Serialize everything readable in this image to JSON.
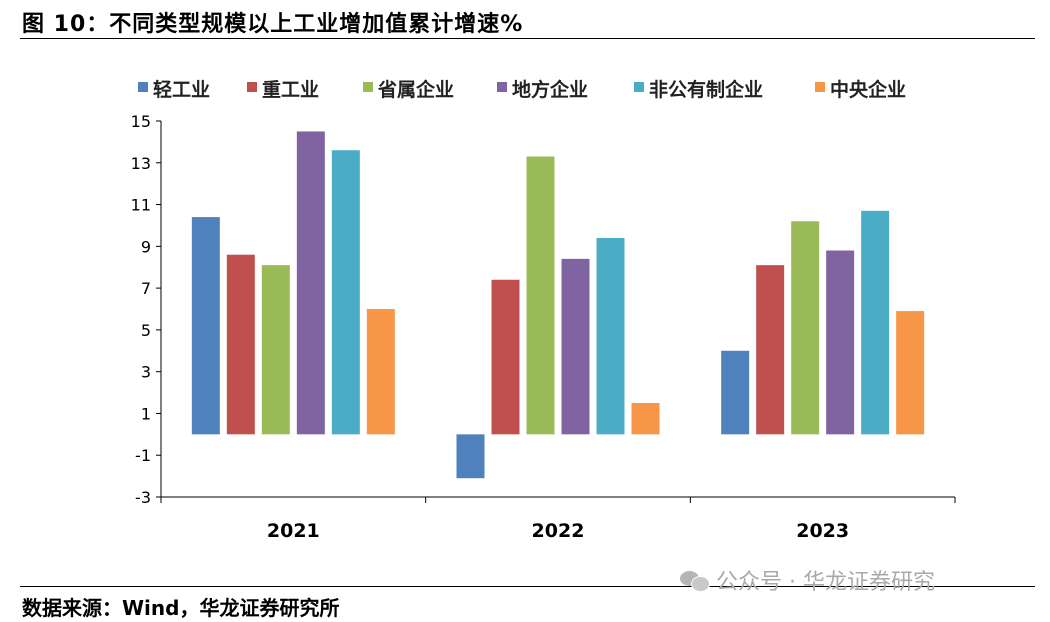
{
  "title": "图 10：不同类型规模以上工业增加值累计增速%",
  "source": "数据来源：Wind，华龙证券研究所",
  "watermark": "公众号 · 华龙证券研究",
  "chart_data": {
    "type": "bar",
    "categories": [
      "2021",
      "2022",
      "2023"
    ],
    "series": [
      {
        "name": "轻工业",
        "color": "#4f81bd",
        "values": [
          10.4,
          -2.1,
          4.0
        ]
      },
      {
        "name": "重工业",
        "color": "#c0504d",
        "values": [
          8.6,
          7.4,
          8.1
        ]
      },
      {
        "name": "省属企业",
        "color": "#9bbb59",
        "values": [
          8.1,
          13.3,
          10.2
        ]
      },
      {
        "name": "地方企业",
        "color": "#8064a2",
        "values": [
          14.5,
          8.4,
          8.8
        ]
      },
      {
        "name": "非公有制企业",
        "color": "#4bacc6",
        "values": [
          13.6,
          9.4,
          10.7
        ]
      },
      {
        "name": "中央企业",
        "color": "#f79646",
        "values": [
          6.0,
          1.5,
          5.9
        ]
      }
    ],
    "ylim": [
      -3,
      15
    ],
    "yticks": [
      "15",
      "13",
      "11",
      "9",
      "7",
      "5",
      "3",
      "1",
      "-1",
      "-3"
    ],
    "xlabel": "",
    "ylabel": "",
    "legend_position": "top",
    "grid": false
  }
}
